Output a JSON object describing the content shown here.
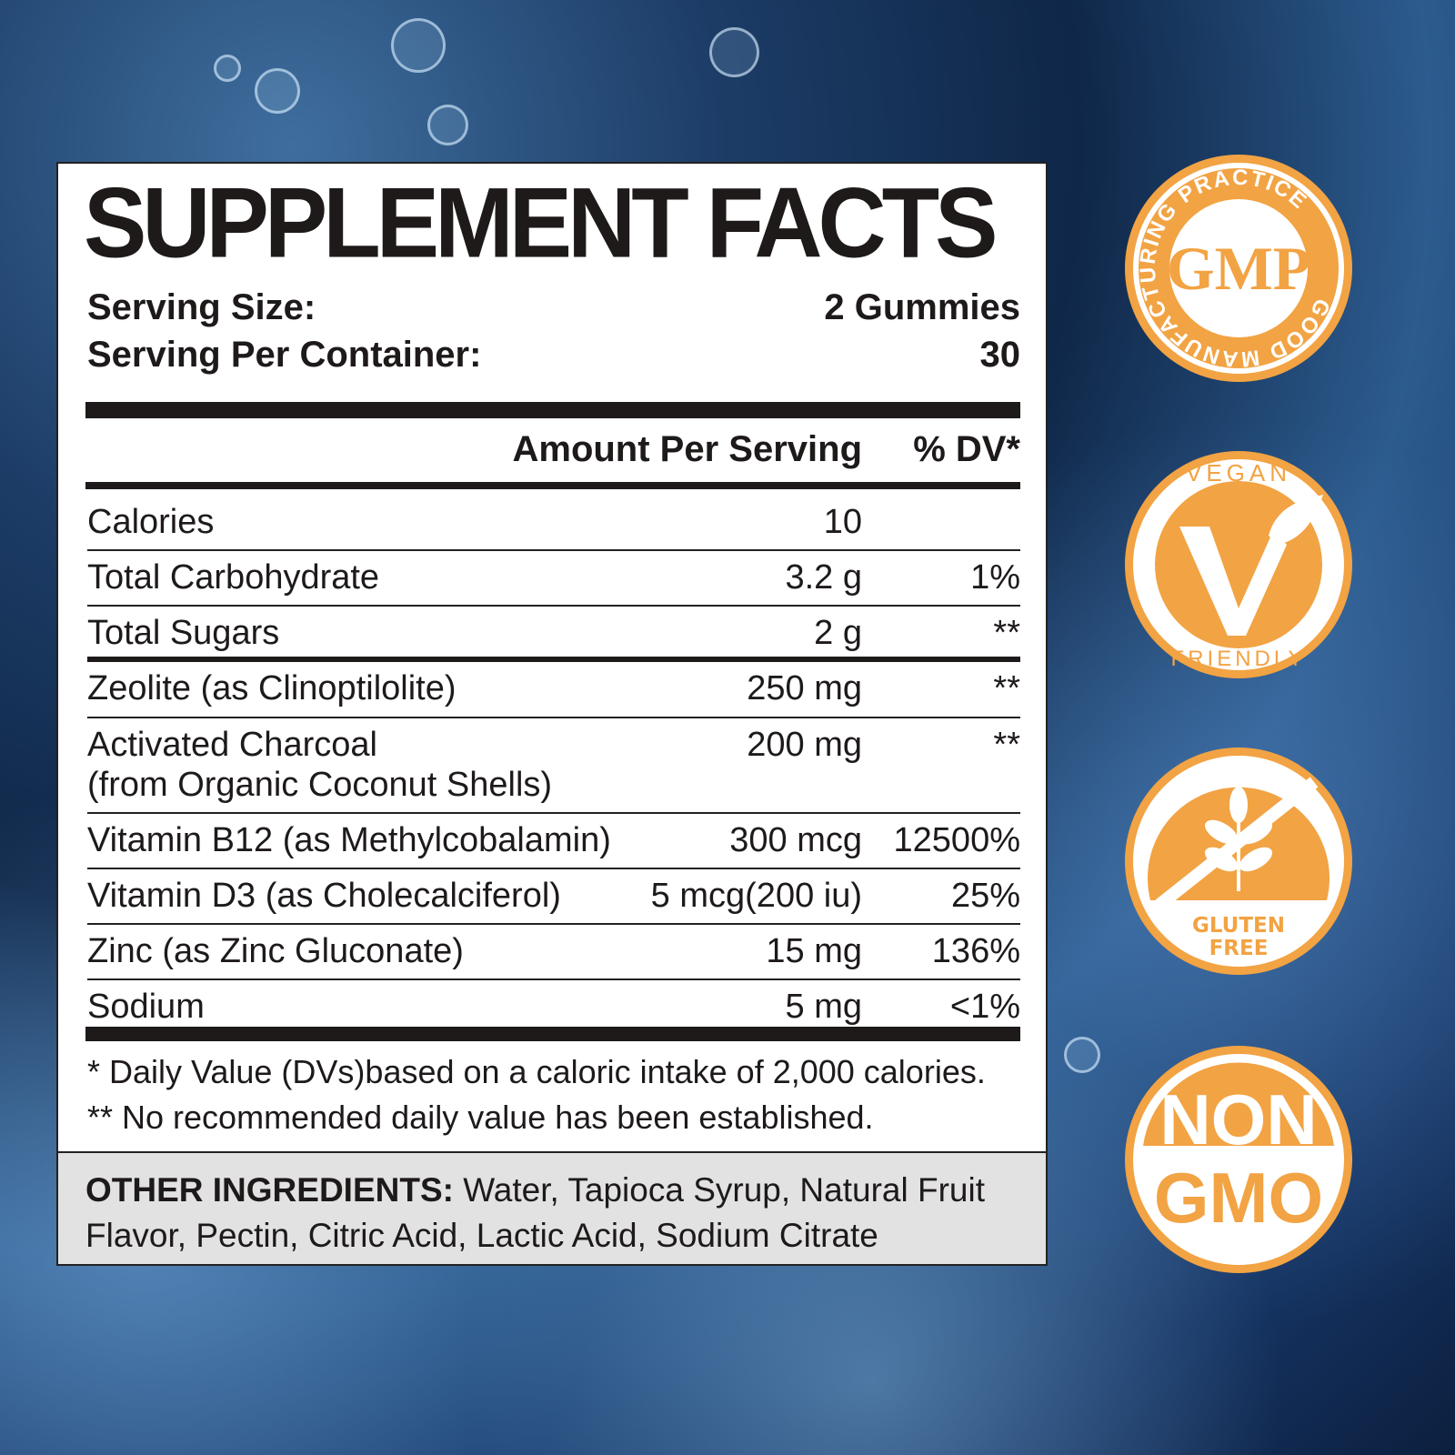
{
  "label": {
    "title": "SUPPLEMENT FACTS",
    "serving_size_label": "Serving Size:",
    "serving_size_value": "2 Gummies",
    "servings_label": "Serving Per Container:",
    "servings_value": "30",
    "header_amount": "Amount Per Serving",
    "header_dv": "% DV*",
    "rows": [
      {
        "name": "Calories",
        "amount": "10",
        "dv": ""
      },
      {
        "name": "Total Carbohydrate",
        "amount": "3.2 g",
        "dv": "1%"
      },
      {
        "name": "Total Sugars",
        "amount": "2 g",
        "dv": "**"
      },
      {
        "name": "Zeolite (as Clinoptilolite)",
        "amount": "250 mg",
        "dv": "**"
      },
      {
        "name": "Activated Charcoal",
        "name2": "(from Organic Coconut Shells)",
        "amount": "200 mg",
        "dv": "**"
      },
      {
        "name": "Vitamin B12 (as Methylcobalamin)",
        "amount": "300 mcg",
        "dv": "12500%"
      },
      {
        "name": "Vitamin D3 (as Cholecalciferol)",
        "amount": "5 mcg(200 iu)",
        "dv": "25%"
      },
      {
        "name": "Zinc (as Zinc Gluconate)",
        "amount": "15 mg",
        "dv": "136%"
      },
      {
        "name": "Sodium",
        "amount": "5 mg",
        "dv": "<1%"
      }
    ],
    "footnote1": "* Daily Value (DVs)based on a caloric intake of 2,000 calories.",
    "footnote2": "** No recommended daily value has been established.",
    "other_label": "OTHER INGREDIENTS:",
    "other_text": " Water, Tapioca Syrup, Natural Fruit Flavor, Pectin, Citric Acid, Lactic Acid, Sodium Citrate"
  },
  "badges": {
    "accent": "#f2a343",
    "gmp": {
      "center": "GMP",
      "ring": "GOOD MANUFACTURING PRACTICE"
    },
    "vegan": {
      "top": "VEGAN",
      "bottom": "FRIENDLY"
    },
    "gluten": {
      "line1": "GLUTEN",
      "line2": "FREE"
    },
    "gmo": {
      "line1": "NON",
      "line2": "GMO"
    }
  }
}
